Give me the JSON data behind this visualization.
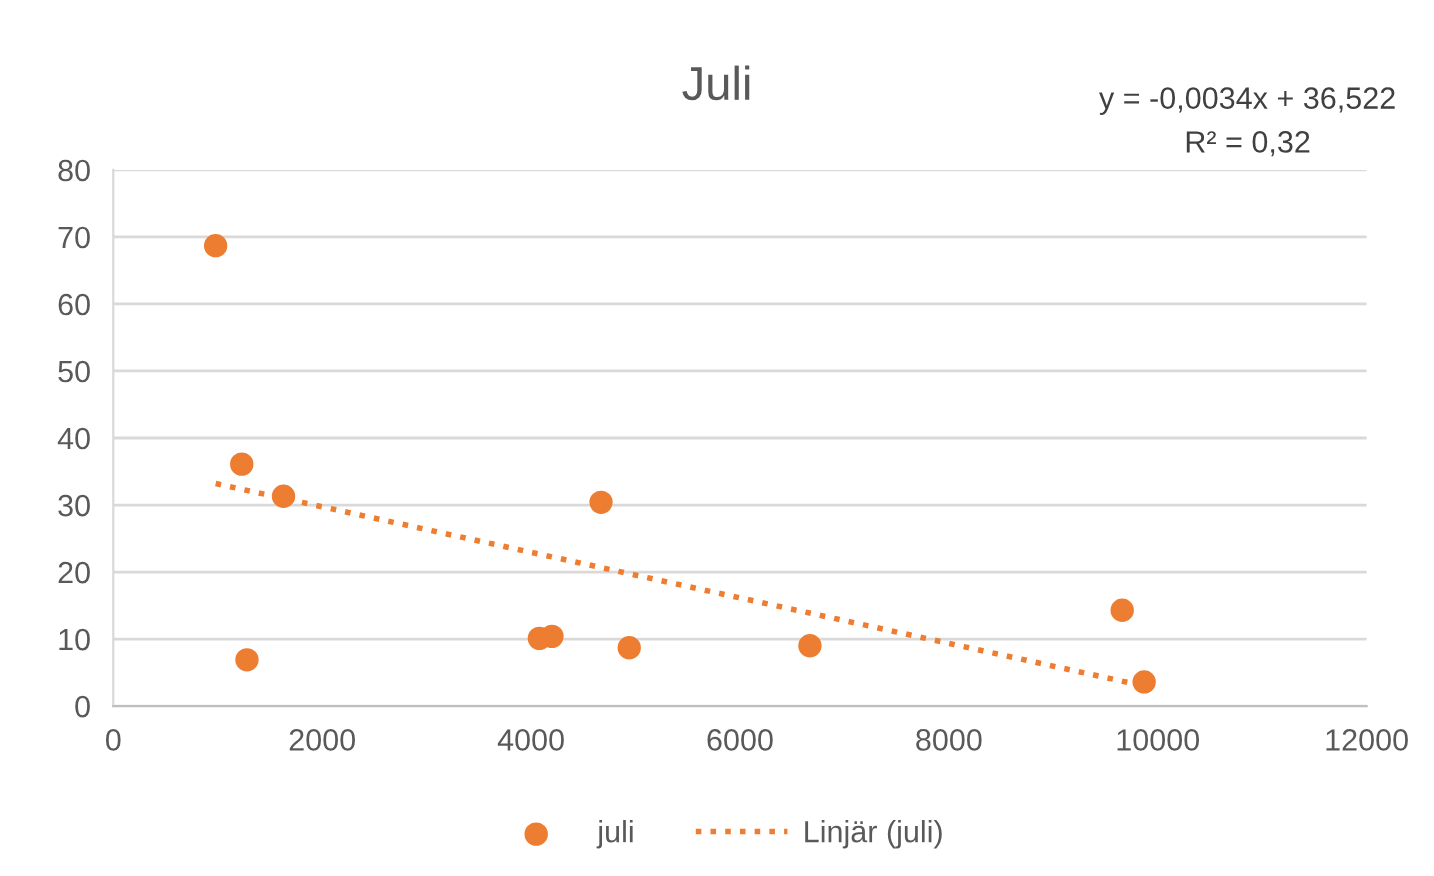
{
  "chart_data": {
    "type": "scatter",
    "title": "Juli",
    "annotations": [
      "y = -0,0034x + 36,522",
      "R² = 0,32"
    ],
    "series": [
      {
        "name": "juli",
        "color": "#ed7d31",
        "marker": "circle",
        "x": [
          980,
          1230,
          1630,
          1280,
          4080,
          4200,
          4670,
          4940,
          6670,
          9660,
          9870
        ],
        "values": [
          68.7,
          36.1,
          31.3,
          6.9,
          10.1,
          10.4,
          30.4,
          8.7,
          9.0,
          14.3,
          3.6
        ]
      },
      {
        "name": "Linjär (juli)",
        "type": "line",
        "color": "#ed7d31",
        "line_style": "dotted",
        "marker": "none",
        "x": [
          980,
          9870
        ],
        "values": [
          33.2,
          3.0
        ]
      }
    ],
    "xlim": [
      0,
      12000
    ],
    "xticks": [
      0,
      2000,
      4000,
      6000,
      8000,
      10000,
      12000
    ],
    "ylim": [
      0,
      80
    ],
    "yticks": [
      0,
      10,
      20,
      30,
      40,
      50,
      60,
      70,
      80
    ],
    "grid": "y",
    "legend": "bottom"
  }
}
